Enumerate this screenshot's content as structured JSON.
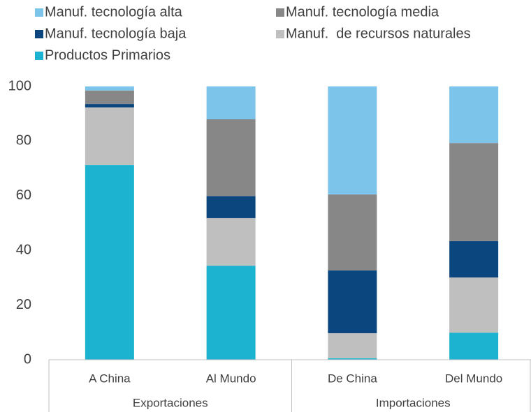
{
  "chart_data": {
    "type": "stacked_bar",
    "categories": [
      "A China",
      "Al Mundo",
      "De China",
      "Del Mundo"
    ],
    "groups": [
      {
        "label": "Exportaciones",
        "span": 2
      },
      {
        "label": "Importaciones",
        "span": 2
      }
    ],
    "series": [
      {
        "name": "Manuf. tecnología alta",
        "color": "#7dc4ea",
        "values": [
          1.5,
          12.0,
          39.5,
          20.7
        ]
      },
      {
        "name": "Manuf. tecnología media",
        "color": "#878787",
        "values": [
          4.9,
          28.1,
          27.8,
          35.9
        ]
      },
      {
        "name": "Manuf. tecnología baja",
        "color": "#0c467f",
        "values": [
          1.3,
          8.1,
          23.0,
          13.3
        ]
      },
      {
        "name": "Manuf.  de recursos naturales",
        "color": "#bfbfbf",
        "values": [
          21.1,
          17.4,
          9.2,
          20.2
        ]
      },
      {
        "name": "Productos Primarios",
        "color": "#1bb3cf",
        "values": [
          71.2,
          34.4,
          0.5,
          9.9
        ]
      }
    ],
    "ylim": [
      0,
      100
    ],
    "yticks": [
      0,
      20,
      40,
      60,
      80,
      100
    ],
    "grid": false
  }
}
